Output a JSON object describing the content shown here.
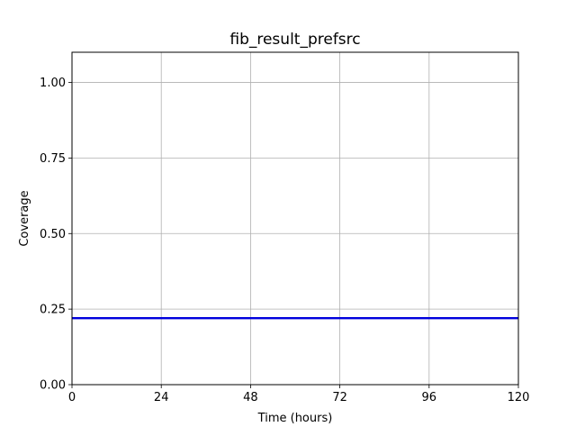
{
  "chart_data": {
    "type": "line",
    "title": "fib_result_prefsrc",
    "xlabel": "Time (hours)",
    "ylabel": "Coverage",
    "xlim": [
      0,
      120
    ],
    "ylim": [
      0,
      1.1
    ],
    "xticks": [
      0,
      24,
      48,
      72,
      96,
      120
    ],
    "xtick_labels": [
      "0",
      "24",
      "48",
      "72",
      "96",
      "120"
    ],
    "yticks": [
      0,
      0.25,
      0.5,
      0.75,
      1.0
    ],
    "ytick_labels": [
      "0.00",
      "0.25",
      "0.50",
      "0.75",
      "1.00"
    ],
    "grid": true,
    "series": [
      {
        "name": "coverage",
        "color": "#0000dd",
        "x": [
          0,
          120
        ],
        "y": [
          0.22,
          0.22
        ]
      }
    ]
  }
}
